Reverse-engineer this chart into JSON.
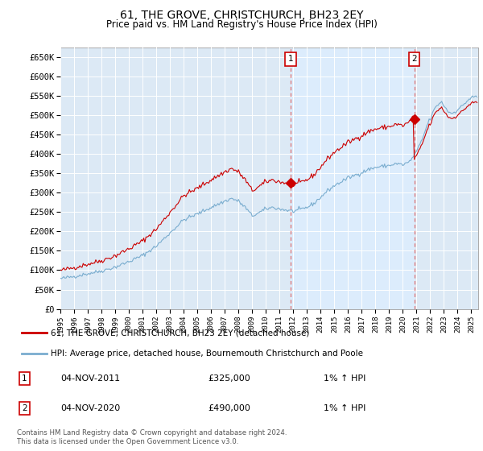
{
  "title": "61, THE GROVE, CHRISTCHURCH, BH23 2EY",
  "subtitle": "Price paid vs. HM Land Registry's House Price Index (HPI)",
  "ylim": [
    0,
    675000
  ],
  "yticks": [
    0,
    50000,
    100000,
    150000,
    200000,
    250000,
    300000,
    350000,
    400000,
    450000,
    500000,
    550000,
    600000,
    650000
  ],
  "ytick_labels": [
    "£0",
    "£50K",
    "£100K",
    "£150K",
    "£200K",
    "£250K",
    "£300K",
    "£350K",
    "£400K",
    "£450K",
    "£500K",
    "£550K",
    "£600K",
    "£650K"
  ],
  "xlim_min": 1995.0,
  "xlim_max": 2025.5,
  "sale1_year": 2011.83,
  "sale1_price": 325000,
  "sale2_year": 2020.83,
  "sale2_price": 490000,
  "legend_red_label": "61, THE GROVE, CHRISTCHURCH, BH23 2EY (detached house)",
  "legend_blue_label": "HPI: Average price, detached house, Bournemouth Christchurch and Poole",
  "annotation1_date": "04-NOV-2011",
  "annotation1_price": "£325,000",
  "annotation1_hpi": "1% ↑ HPI",
  "annotation2_date": "04-NOV-2020",
  "annotation2_price": "£490,000",
  "annotation2_hpi": "1% ↑ HPI",
  "footer": "Contains HM Land Registry data © Crown copyright and database right 2024.\nThis data is licensed under the Open Government Licence v3.0.",
  "red_color": "#cc0000",
  "blue_color": "#7aadcf",
  "highlight_color": "#ddeeff",
  "marker_color": "#cc0000",
  "dashed_color": "#dd6666",
  "plot_bg_color": "#dce9f5",
  "grid_color": "#ffffff",
  "xtick_years": [
    1995,
    1996,
    1997,
    1998,
    1999,
    2000,
    2001,
    2002,
    2003,
    2004,
    2005,
    2006,
    2007,
    2008,
    2009,
    2010,
    2011,
    2012,
    2013,
    2014,
    2015,
    2016,
    2017,
    2018,
    2019,
    2020,
    2021,
    2022,
    2023,
    2024,
    2025
  ]
}
